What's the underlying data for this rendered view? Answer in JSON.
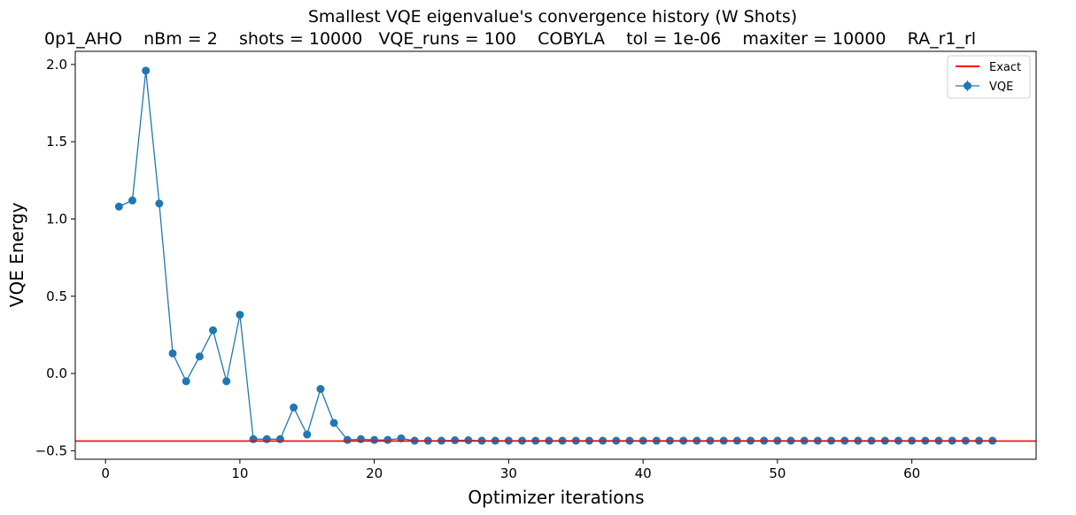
{
  "chart_data": {
    "type": "line",
    "title": "Smallest VQE eigenvalue's convergence history (W Shots)",
    "subtitle": "0p1_AHO    nBm = 2    shots = 10000   VQE_runs = 100    COBYLA    tol = 1e-06    maxiter = 10000    RA_r1_rl",
    "xlabel": "Optimizer iterations",
    "ylabel": "VQE Energy",
    "xlim": [
      -2.25,
      69.25
    ],
    "ylim": [
      -0.555,
      2.085
    ],
    "xticks": [
      0,
      10,
      20,
      30,
      40,
      50,
      60
    ],
    "yticks": [
      -0.5,
      0.0,
      0.5,
      1.0,
      1.5,
      2.0
    ],
    "xtick_labels": [
      "0",
      "10",
      "20",
      "30",
      "40",
      "50",
      "60"
    ],
    "ytick_labels": [
      "−0.5",
      "0.0",
      "0.5",
      "1.0",
      "1.5",
      "2.0"
    ],
    "grid": false,
    "legend_position": "top-right",
    "exact": {
      "name": "Exact",
      "value": -0.437,
      "color": "#ff0000"
    },
    "series": [
      {
        "name": "VQE",
        "color": "#1f77b4",
        "marker": "circle",
        "x": [
          1,
          2,
          3,
          4,
          5,
          6,
          7,
          8,
          9,
          10,
          11,
          12,
          13,
          14,
          15,
          16,
          17,
          18,
          19,
          20,
          21,
          22,
          23,
          24,
          25,
          26,
          27,
          28,
          29,
          30,
          31,
          32,
          33,
          34,
          35,
          36,
          37,
          38,
          39,
          40,
          41,
          42,
          43,
          44,
          45,
          46,
          47,
          48,
          49,
          50,
          51,
          52,
          53,
          54,
          55,
          56,
          57,
          58,
          59,
          60,
          61,
          62,
          63,
          64,
          65,
          66
        ],
        "y": [
          1.08,
          1.12,
          1.96,
          1.1,
          0.13,
          -0.05,
          0.11,
          0.28,
          -0.05,
          0.38,
          -0.425,
          -0.425,
          -0.425,
          -0.22,
          -0.395,
          -0.1,
          -0.32,
          -0.43,
          -0.425,
          -0.43,
          -0.43,
          -0.42,
          -0.435,
          -0.435,
          -0.435,
          -0.432,
          -0.432,
          -0.435,
          -0.435,
          -0.435,
          -0.435,
          -0.435,
          -0.435,
          -0.435,
          -0.435,
          -0.435,
          -0.435,
          -0.435,
          -0.435,
          -0.435,
          -0.435,
          -0.435,
          -0.435,
          -0.435,
          -0.435,
          -0.435,
          -0.435,
          -0.435,
          -0.435,
          -0.435,
          -0.435,
          -0.435,
          -0.435,
          -0.435,
          -0.435,
          -0.435,
          -0.435,
          -0.435,
          -0.435,
          -0.435,
          -0.435,
          -0.435,
          -0.435,
          -0.435,
          -0.435,
          -0.435
        ]
      }
    ]
  }
}
